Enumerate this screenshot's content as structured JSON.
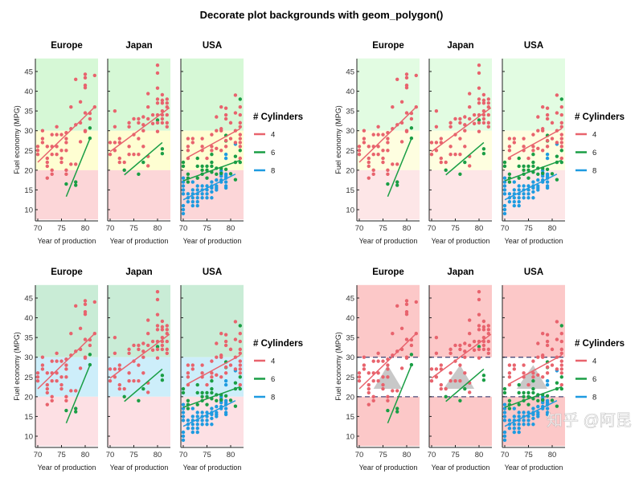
{
  "title": "Decorate plot backgrounds with geom_polygon()",
  "watermark": "知乎 @阿昆",
  "chart_data": {
    "type": "scatter",
    "facets": [
      "Europe",
      "Japan",
      "USA"
    ],
    "xlabel": "Year of production",
    "ylabel": "Fuel economy (MPG)",
    "xlim": [
      69.3,
      82.7
    ],
    "ylim": [
      7.5,
      48.3
    ],
    "xticks": [
      70,
      75,
      80
    ],
    "yticks": [
      10,
      15,
      20,
      25,
      30,
      35,
      40,
      45
    ],
    "legend": {
      "title": "# Cylinders",
      "position": "right"
    },
    "series": [
      {
        "name": "4",
        "color": "#e8636d"
      },
      {
        "name": "6",
        "color": "#1a9e45"
      },
      {
        "name": "8",
        "color": "#1e9be0"
      }
    ],
    "points": {
      "Europe": {
        "4": [
          [
            70,
            26
          ],
          [
            70,
            25
          ],
          [
            70,
            24
          ],
          [
            71,
            28
          ],
          [
            71,
            27
          ],
          [
            71,
            30
          ],
          [
            72,
            26
          ],
          [
            72,
            22
          ],
          [
            72,
            21
          ],
          [
            72,
            18
          ],
          [
            72,
            23
          ],
          [
            73,
            29
          ],
          [
            73,
            26
          ],
          [
            73,
            24
          ],
          [
            73,
            20
          ],
          [
            73,
            19
          ],
          [
            74,
            31
          ],
          [
            74,
            26
          ],
          [
            74,
            29
          ],
          [
            74,
            24
          ],
          [
            75,
            29
          ],
          [
            75,
            25
          ],
          [
            75,
            23
          ],
          [
            75,
            22
          ],
          [
            76,
            29.5
          ],
          [
            76,
            28
          ],
          [
            76,
            27
          ],
          [
            76,
            25
          ],
          [
            76,
            20
          ],
          [
            76,
            19
          ],
          [
            77,
            36
          ],
          [
            77,
            30.5
          ],
          [
            77,
            21.5
          ],
          [
            78,
            43
          ],
          [
            78,
            31.5
          ],
          [
            78,
            21.5
          ],
          [
            79,
            37.3
          ],
          [
            79,
            32
          ],
          [
            79,
            27.2
          ],
          [
            80,
            44.3
          ],
          [
            80,
            43.4
          ],
          [
            80,
            41.5
          ],
          [
            80,
            40.9
          ],
          [
            80,
            34.5
          ],
          [
            80,
            30
          ],
          [
            80,
            29.8
          ],
          [
            81,
            34.4
          ],
          [
            81,
            33
          ],
          [
            82,
            44
          ],
          [
            82,
            36
          ]
        ],
        "6": [
          [
            76,
            16.5
          ],
          [
            78,
            17
          ],
          [
            78,
            16.2
          ],
          [
            81,
            30.7
          ],
          [
            81,
            28.1
          ]
        ],
        "8": []
      },
      "Japan": {
        "4": [
          [
            70,
            27
          ],
          [
            70,
            24
          ],
          [
            71,
            35
          ],
          [
            71,
            31
          ],
          [
            71,
            27
          ],
          [
            71,
            25
          ],
          [
            72,
            28
          ],
          [
            72,
            27
          ],
          [
            72,
            23
          ],
          [
            72,
            22
          ],
          [
            73,
            22
          ],
          [
            74,
            32
          ],
          [
            74,
            31
          ],
          [
            74,
            26
          ],
          [
            74,
            24
          ],
          [
            75,
            33
          ],
          [
            75,
            29
          ],
          [
            75,
            24
          ],
          [
            76,
            33
          ],
          [
            76,
            32
          ],
          [
            76,
            28
          ],
          [
            76,
            24
          ],
          [
            77,
            33.5
          ],
          [
            77,
            31.5
          ],
          [
            77,
            30
          ],
          [
            77,
            26
          ],
          [
            78,
            39.4
          ],
          [
            78,
            36
          ],
          [
            78,
            33
          ],
          [
            78,
            23.5
          ],
          [
            78,
            21.1
          ],
          [
            79,
            34
          ],
          [
            79,
            31.8
          ],
          [
            80,
            46.6
          ],
          [
            80,
            44.6
          ],
          [
            80,
            40.8
          ],
          [
            80,
            38
          ],
          [
            80,
            37
          ],
          [
            80,
            34
          ],
          [
            80,
            32
          ],
          [
            80,
            29.8
          ],
          [
            81,
            39.1
          ],
          [
            81,
            37.7
          ],
          [
            81,
            37
          ],
          [
            81,
            35
          ],
          [
            81,
            34
          ],
          [
            81,
            33
          ],
          [
            81,
            32
          ],
          [
            82,
            38
          ],
          [
            82,
            37
          ],
          [
            82,
            36
          ],
          [
            82,
            34
          ],
          [
            82,
            32
          ],
          [
            82,
            31
          ]
        ],
        "6": [
          [
            73,
            20
          ],
          [
            76,
            19
          ],
          [
            77,
            22
          ],
          [
            80,
            32.7
          ],
          [
            81,
            25.4
          ],
          [
            81,
            24.2
          ]
        ],
        "8": []
      },
      "USA": {
        "4": [
          [
            71,
            28
          ],
          [
            71,
            26
          ],
          [
            71,
            25
          ],
          [
            71,
            23
          ],
          [
            72,
            28
          ],
          [
            72,
            27
          ],
          [
            74,
            28
          ],
          [
            74,
            26
          ],
          [
            74,
            25
          ],
          [
            75,
            23
          ],
          [
            76,
            29
          ],
          [
            76,
            26
          ],
          [
            76,
            25
          ],
          [
            77,
            33.5
          ],
          [
            77,
            30
          ],
          [
            77,
            25.5
          ],
          [
            78,
            36
          ],
          [
            78,
            30.5
          ],
          [
            78,
            30
          ],
          [
            78,
            25
          ],
          [
            79,
            35.7
          ],
          [
            79,
            34
          ],
          [
            79,
            33
          ],
          [
            79,
            27.5
          ],
          [
            79,
            26
          ],
          [
            80,
            32
          ],
          [
            80,
            28
          ],
          [
            81,
            39
          ],
          [
            81,
            34.5
          ],
          [
            81,
            30
          ],
          [
            81,
            27
          ],
          [
            82,
            36
          ],
          [
            82,
            34
          ],
          [
            82,
            32
          ],
          [
            82,
            31
          ],
          [
            82,
            29
          ],
          [
            82,
            28
          ],
          [
            82,
            27
          ],
          [
            82,
            26
          ],
          [
            82,
            23
          ]
        ],
        "6": [
          [
            70,
            22
          ],
          [
            70,
            21
          ],
          [
            71,
            19
          ],
          [
            71,
            18
          ],
          [
            71,
            17
          ],
          [
            73,
            23
          ],
          [
            73,
            21
          ],
          [
            73,
            18
          ],
          [
            74,
            21
          ],
          [
            74,
            20
          ],
          [
            74,
            19
          ],
          [
            75,
            21
          ],
          [
            75,
            20
          ],
          [
            75,
            18
          ],
          [
            76,
            24
          ],
          [
            76,
            22
          ],
          [
            76,
            21
          ],
          [
            76,
            19.5
          ],
          [
            77,
            20.5
          ],
          [
            77,
            19
          ],
          [
            78,
            20.5
          ],
          [
            78,
            19.2
          ],
          [
            79,
            28.8
          ],
          [
            79,
            27.4
          ],
          [
            79,
            20.2
          ],
          [
            80,
            19.1
          ],
          [
            81,
            23.5
          ],
          [
            81,
            22
          ],
          [
            81,
            17.6
          ],
          [
            82,
            25
          ],
          [
            82,
            22
          ],
          [
            82,
            38
          ]
        ],
        "8": [
          [
            70,
            18
          ],
          [
            70,
            17
          ],
          [
            70,
            16
          ],
          [
            70,
            15
          ],
          [
            70,
            14
          ],
          [
            70,
            10
          ],
          [
            70,
            9
          ],
          [
            70,
            11
          ],
          [
            71,
            14
          ],
          [
            71,
            13
          ],
          [
            71,
            12
          ],
          [
            72,
            17
          ],
          [
            72,
            15
          ],
          [
            72,
            14
          ],
          [
            72,
            13
          ],
          [
            72,
            12
          ],
          [
            72,
            11
          ],
          [
            73,
            16
          ],
          [
            73,
            15
          ],
          [
            73,
            14
          ],
          [
            73,
            13
          ],
          [
            73,
            12
          ],
          [
            73,
            11
          ],
          [
            74,
            16
          ],
          [
            74,
            15
          ],
          [
            74,
            14
          ],
          [
            74,
            13
          ],
          [
            75,
            16
          ],
          [
            75,
            15
          ],
          [
            75,
            14
          ],
          [
            75,
            13
          ],
          [
            76,
            17
          ],
          [
            76,
            16
          ],
          [
            76,
            15.5
          ],
          [
            76,
            14.5
          ],
          [
            76,
            13
          ],
          [
            77,
            17.5
          ],
          [
            77,
            16
          ],
          [
            77,
            15.5
          ],
          [
            77,
            15
          ],
          [
            78,
            20
          ],
          [
            78,
            19.4
          ],
          [
            78,
            19
          ],
          [
            78,
            18.5
          ],
          [
            78,
            17.5
          ],
          [
            78,
            17
          ],
          [
            79,
            24
          ],
          [
            79,
            23
          ],
          [
            79,
            19
          ],
          [
            79,
            18.5
          ],
          [
            79,
            18
          ],
          [
            79,
            17
          ],
          [
            79,
            16
          ],
          [
            79,
            15.5
          ],
          [
            81,
            26.6
          ]
        ]
      }
    },
    "trend_lines": {
      "Europe": {
        "4": [
          [
            70,
            22
          ],
          [
            82,
            36
          ]
        ],
        "6": [
          [
            76,
            13.3
          ],
          [
            81,
            28
          ]
        ]
      },
      "Japan": {
        "4": [
          [
            70,
            24.7
          ],
          [
            82.5,
            35.8
          ]
        ],
        "6": [
          [
            73,
            18.8
          ],
          [
            81,
            27
          ]
        ]
      },
      "USA": {
        "4": [
          [
            71,
            23.3
          ],
          [
            82,
            30.5
          ]
        ],
        "6": [
          [
            70,
            17.3
          ],
          [
            82,
            22.5
          ]
        ],
        "8": [
          [
            70,
            12.5
          ],
          [
            81,
            19
          ]
        ]
      }
    },
    "variants": [
      {
        "bands": [
          {
            "from": 30,
            "to": 48.3,
            "color": "#d6f8d6"
          },
          {
            "from": 20,
            "to": 30,
            "color": "#fefed2"
          },
          {
            "from": 7.5,
            "to": 20,
            "color": "#fcd6d8"
          }
        ]
      },
      {
        "bands": [
          {
            "from": 30,
            "to": 48.3,
            "color": "#e2fce2"
          },
          {
            "from": 20,
            "to": 30,
            "color": "#fefee0"
          },
          {
            "from": 7.5,
            "to": 20,
            "color": "#fde6e7"
          }
        ]
      },
      {
        "bands": [
          {
            "from": 30,
            "to": 48.3,
            "color": "#c9ecd6"
          },
          {
            "from": 20,
            "to": 30,
            "color": "#cdeefa"
          },
          {
            "from": 7.5,
            "to": 20,
            "color": "#fde0e4"
          }
        ]
      },
      {
        "bands": [
          {
            "from": 7.5,
            "to": 48.3,
            "color": "#fcc8c8"
          },
          {
            "from": 20,
            "to": 30,
            "color": "#ffffff"
          }
        ],
        "dashed_lines": [
          20,
          30
        ],
        "dash_color": "#4a4a78",
        "triangles": {
          "Europe": [
            [
              73,
              22
            ],
            [
              79,
              22
            ],
            [
              76,
              28
            ]
          ],
          "Japan": [
            [
              72.5,
              22
            ],
            [
              79,
              22
            ],
            [
              76,
              28
            ]
          ],
          "USA": [
            [
              72.5,
              22
            ],
            [
              79,
              22
            ],
            [
              76,
              28
            ]
          ]
        },
        "triangle_color": "#c8c8c8"
      }
    ]
  }
}
